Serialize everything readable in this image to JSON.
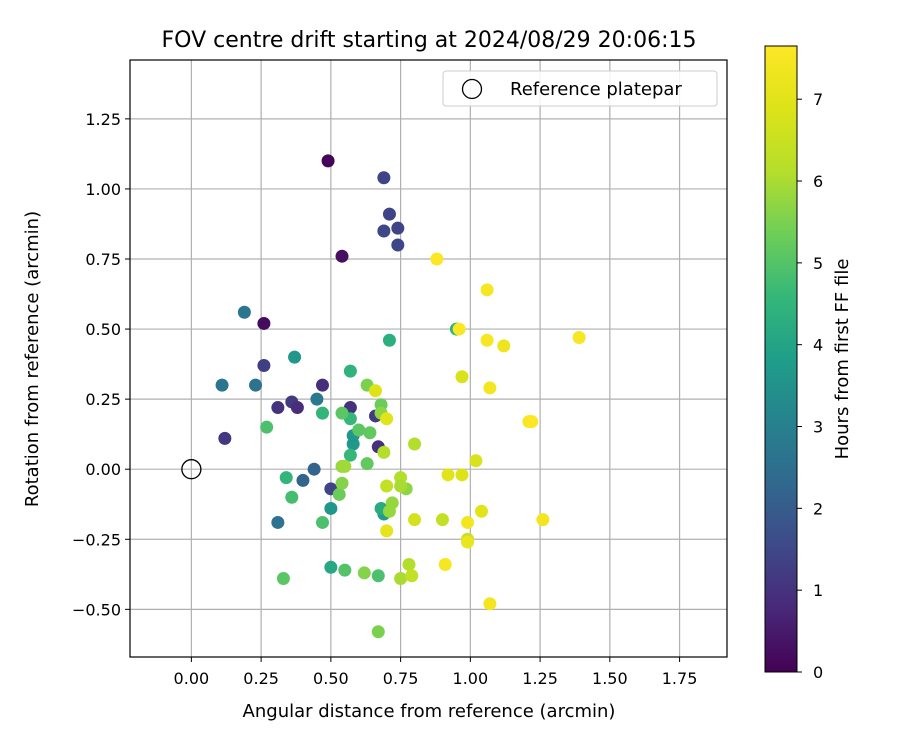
{
  "chart_data": {
    "type": "scatter",
    "title": "FOV centre drift starting at 2024/08/29 20:06:15",
    "xlabel": "Angular distance from reference (arcmin)",
    "ylabel": "Rotation from reference (arcmin)",
    "xlim": [
      -0.22,
      1.92
    ],
    "ylim": [
      -0.67,
      1.46
    ],
    "x_ticks": [
      0.0,
      0.25,
      0.5,
      0.75,
      1.0,
      1.25,
      1.5,
      1.75
    ],
    "x_tick_labels": [
      "0.00",
      "0.25",
      "0.50",
      "0.75",
      "1.00",
      "1.25",
      "1.50",
      "1.75"
    ],
    "y_ticks": [
      -0.5,
      -0.25,
      0.0,
      0.25,
      0.5,
      0.75,
      1.0,
      1.25
    ],
    "y_tick_labels": [
      "−0.50",
      "−0.25",
      "0.00",
      "0.25",
      "0.50",
      "0.75",
      "1.00",
      "1.25"
    ],
    "grid": true,
    "legend": {
      "position": "top-right",
      "entries": [
        {
          "label": "Reference platepar",
          "marker": "open-circle"
        }
      ]
    },
    "reference_point": {
      "x": 0.0,
      "y": 0.0
    },
    "colorbar": {
      "label": "Hours from first FF file",
      "colormap": "viridis",
      "range": [
        0,
        7.65
      ],
      "ticks": [
        0,
        1,
        2,
        3,
        4,
        5,
        6,
        7
      ],
      "tick_labels": [
        "0",
        "1",
        "2",
        "3",
        "4",
        "5",
        "6",
        "7"
      ]
    },
    "points": [
      {
        "x": 0.49,
        "y": 1.1,
        "h": 0.1
      },
      {
        "x": 0.26,
        "y": 0.52,
        "h": 0.2
      },
      {
        "x": 0.54,
        "y": 0.76,
        "h": 0.3
      },
      {
        "x": 0.69,
        "y": 1.04,
        "h": 1.4
      },
      {
        "x": 0.71,
        "y": 0.91,
        "h": 1.4
      },
      {
        "x": 0.69,
        "y": 0.85,
        "h": 1.5
      },
      {
        "x": 0.74,
        "y": 0.86,
        "h": 1.4
      },
      {
        "x": 0.74,
        "y": 0.8,
        "h": 1.5
      },
      {
        "x": 0.47,
        "y": 0.3,
        "h": 0.9
      },
      {
        "x": 0.26,
        "y": 0.37,
        "h": 1.3
      },
      {
        "x": 0.12,
        "y": 0.11,
        "h": 1.1
      },
      {
        "x": 0.31,
        "y": 0.22,
        "h": 1.0
      },
      {
        "x": 0.36,
        "y": 0.24,
        "h": 1.2
      },
      {
        "x": 0.38,
        "y": 0.22,
        "h": 0.9
      },
      {
        "x": 0.57,
        "y": 0.22,
        "h": 1.0
      },
      {
        "x": 0.66,
        "y": 0.19,
        "h": 1.2
      },
      {
        "x": 0.67,
        "y": 0.08,
        "h": 1.0
      },
      {
        "x": 0.5,
        "y": -0.07,
        "h": 1.4
      },
      {
        "x": 0.44,
        "y": 0.0,
        "h": 2.2
      },
      {
        "x": 0.4,
        "y": -0.04,
        "h": 2.2
      },
      {
        "x": 0.31,
        "y": -0.19,
        "h": 2.6
      },
      {
        "x": 0.19,
        "y": 0.56,
        "h": 2.7
      },
      {
        "x": 0.11,
        "y": 0.3,
        "h": 2.7
      },
      {
        "x": 0.23,
        "y": 0.3,
        "h": 2.6
      },
      {
        "x": 0.45,
        "y": 0.25,
        "h": 2.8
      },
      {
        "x": 0.37,
        "y": 0.4,
        "h": 3.6
      },
      {
        "x": 0.5,
        "y": -0.14,
        "h": 3.6
      },
      {
        "x": 0.58,
        "y": 0.09,
        "h": 3.7
      },
      {
        "x": 0.58,
        "y": 0.12,
        "h": 3.6
      },
      {
        "x": 0.5,
        "y": -0.35,
        "h": 4.1
      },
      {
        "x": 0.71,
        "y": 0.46,
        "h": 4.3
      },
      {
        "x": 0.57,
        "y": 0.35,
        "h": 4.4
      },
      {
        "x": 0.47,
        "y": 0.2,
        "h": 4.5
      },
      {
        "x": 0.69,
        "y": -0.16,
        "h": 3.8
      },
      {
        "x": 0.68,
        "y": -0.14,
        "h": 4.2
      },
      {
        "x": 0.95,
        "y": 0.5,
        "h": 4.4
      },
      {
        "x": 0.57,
        "y": 0.18,
        "h": 4.6
      },
      {
        "x": 0.57,
        "y": 0.05,
        "h": 4.6
      },
      {
        "x": 0.34,
        "y": -0.03,
        "h": 4.5
      },
      {
        "x": 0.36,
        "y": -0.1,
        "h": 4.8
      },
      {
        "x": 0.27,
        "y": 0.15,
        "h": 4.9
      },
      {
        "x": 0.33,
        "y": -0.39,
        "h": 5.1
      },
      {
        "x": 0.47,
        "y": -0.19,
        "h": 4.9
      },
      {
        "x": 0.55,
        "y": -0.36,
        "h": 5.0
      },
      {
        "x": 0.67,
        "y": -0.38,
        "h": 4.9
      },
      {
        "x": 0.54,
        "y": 0.2,
        "h": 5.1
      },
      {
        "x": 0.6,
        "y": 0.14,
        "h": 5.1
      },
      {
        "x": 0.63,
        "y": 0.02,
        "h": 5.2
      },
      {
        "x": 0.64,
        "y": 0.13,
        "h": 5.2
      },
      {
        "x": 0.68,
        "y": 0.23,
        "h": 5.3
      },
      {
        "x": 0.63,
        "y": 0.3,
        "h": 5.5
      },
      {
        "x": 0.53,
        "y": -0.09,
        "h": 5.3
      },
      {
        "x": 0.54,
        "y": -0.05,
        "h": 5.6
      },
      {
        "x": 0.54,
        "y": 0.01,
        "h": 5.8
      },
      {
        "x": 0.55,
        "y": 0.01,
        "h": 5.9
      },
      {
        "x": 0.62,
        "y": -0.37,
        "h": 5.6
      },
      {
        "x": 0.67,
        "y": -0.58,
        "h": 5.5
      },
      {
        "x": 0.68,
        "y": 0.2,
        "h": 5.7
      },
      {
        "x": 0.72,
        "y": -0.12,
        "h": 5.8
      },
      {
        "x": 0.71,
        "y": -0.15,
        "h": 5.8
      },
      {
        "x": 0.77,
        "y": -0.07,
        "h": 5.7
      },
      {
        "x": 0.75,
        "y": -0.03,
        "h": 6.1
      },
      {
        "x": 0.75,
        "y": -0.06,
        "h": 6.0
      },
      {
        "x": 0.69,
        "y": 0.06,
        "h": 6.1
      },
      {
        "x": 0.8,
        "y": 0.09,
        "h": 6.1
      },
      {
        "x": 0.75,
        "y": -0.39,
        "h": 6.0
      },
      {
        "x": 0.78,
        "y": -0.34,
        "h": 6.1
      },
      {
        "x": 0.79,
        "y": -0.38,
        "h": 6.4
      },
      {
        "x": 0.7,
        "y": -0.06,
        "h": 6.4
      },
      {
        "x": 0.8,
        "y": -0.18,
        "h": 6.7
      },
      {
        "x": 0.9,
        "y": -0.18,
        "h": 6.4
      },
      {
        "x": 0.99,
        "y": -0.25,
        "h": 6.5
      },
      {
        "x": 0.97,
        "y": 0.33,
        "h": 6.8
      },
      {
        "x": 0.66,
        "y": 0.28,
        "h": 6.9
      },
      {
        "x": 0.7,
        "y": 0.18,
        "h": 7.0
      },
      {
        "x": 0.7,
        "y": -0.22,
        "h": 7.1
      },
      {
        "x": 0.92,
        "y": -0.02,
        "h": 7.0
      },
      {
        "x": 0.97,
        "y": -0.02,
        "h": 6.9
      },
      {
        "x": 1.02,
        "y": 0.03,
        "h": 6.8
      },
      {
        "x": 1.04,
        "y": -0.15,
        "h": 7.0
      },
      {
        "x": 0.99,
        "y": -0.26,
        "h": 7.2
      },
      {
        "x": 0.99,
        "y": -0.19,
        "h": 7.4
      },
      {
        "x": 0.91,
        "y": -0.34,
        "h": 7.5
      },
      {
        "x": 1.07,
        "y": -0.48,
        "h": 7.4
      },
      {
        "x": 0.88,
        "y": 0.75,
        "h": 7.6
      },
      {
        "x": 1.06,
        "y": 0.64,
        "h": 7.5
      },
      {
        "x": 0.96,
        "y": 0.5,
        "h": 7.6
      },
      {
        "x": 1.06,
        "y": 0.46,
        "h": 7.5
      },
      {
        "x": 1.12,
        "y": 0.44,
        "h": 7.3
      },
      {
        "x": 1.07,
        "y": 0.29,
        "h": 7.4
      },
      {
        "x": 1.21,
        "y": 0.17,
        "h": 7.5
      },
      {
        "x": 1.22,
        "y": 0.17,
        "h": 7.6
      },
      {
        "x": 1.39,
        "y": 0.47,
        "h": 7.5
      },
      {
        "x": 1.26,
        "y": -0.18,
        "h": 7.4
      }
    ]
  }
}
